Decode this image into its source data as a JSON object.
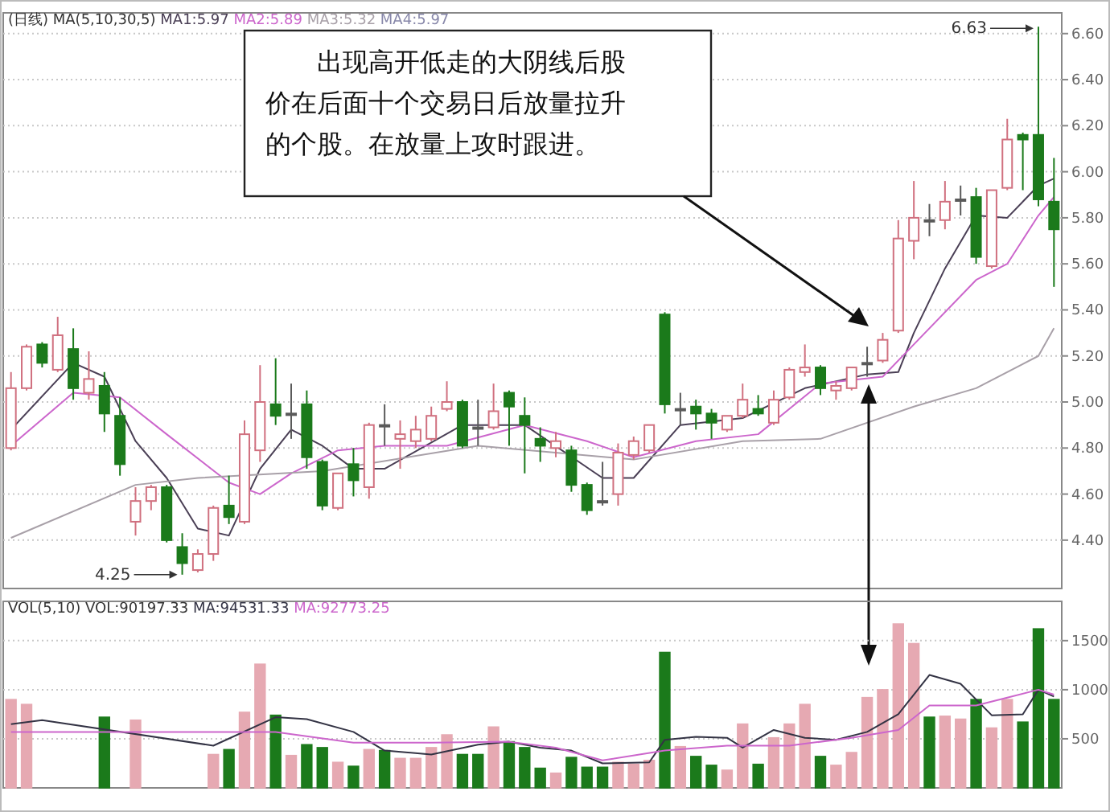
{
  "chart_data": [
    {
      "type": "candlestick",
      "legend_title": "(日线) MA(5,10,30,5)",
      "legend": "top left",
      "grid": "y",
      "categories": [
        null,
        null,
        null,
        null,
        null,
        null,
        null,
        null,
        null,
        null,
        null,
        null,
        null,
        null,
        null,
        null,
        null,
        null,
        null,
        null,
        null,
        null,
        null,
        null,
        null,
        null,
        null,
        null,
        null,
        null,
        null,
        null,
        null,
        null,
        null,
        null,
        null,
        null,
        null,
        null,
        null,
        null,
        null,
        null,
        null,
        null,
        null,
        null,
        null,
        null,
        null,
        null,
        null,
        null,
        null,
        null,
        null,
        null,
        null,
        null,
        null,
        null,
        null,
        null,
        null,
        null,
        null,
        null
      ],
      "ohlc": [
        [
          4.8,
          5.13,
          4.79,
          5.06
        ],
        [
          5.06,
          5.25,
          5.05,
          5.24
        ],
        [
          5.25,
          5.26,
          5.15,
          5.17
        ],
        [
          5.14,
          5.37,
          5.13,
          5.29
        ],
        [
          5.23,
          5.32,
          5.01,
          5.06
        ],
        [
          5.04,
          5.22,
          5.01,
          5.1
        ],
        [
          5.07,
          5.13,
          4.87,
          4.95
        ],
        [
          4.94,
          5.02,
          4.68,
          4.73
        ],
        [
          4.48,
          4.63,
          4.42,
          4.57
        ],
        [
          4.57,
          4.64,
          4.53,
          4.63
        ],
        [
          4.63,
          4.64,
          4.39,
          4.4
        ],
        [
          4.37,
          4.43,
          4.25,
          4.3
        ],
        [
          4.27,
          4.36,
          4.26,
          4.34
        ],
        [
          4.34,
          4.55,
          4.31,
          4.54
        ],
        [
          4.55,
          4.68,
          4.47,
          4.5
        ],
        [
          4.48,
          4.92,
          4.47,
          4.86
        ],
        [
          4.79,
          5.16,
          4.74,
          5.0
        ],
        [
          4.99,
          5.19,
          4.9,
          4.94
        ],
        [
          4.95,
          5.08,
          4.84,
          4.95
        ],
        [
          4.99,
          5.05,
          4.71,
          4.76
        ],
        [
          4.74,
          4.75,
          4.53,
          4.55
        ],
        [
          4.54,
          4.69,
          4.53,
          4.69
        ],
        [
          4.73,
          4.8,
          4.59,
          4.66
        ],
        [
          4.63,
          4.91,
          4.58,
          4.9
        ],
        [
          4.9,
          4.99,
          4.81,
          4.9
        ],
        [
          4.84,
          4.92,
          4.71,
          4.86
        ],
        [
          4.83,
          4.94,
          4.8,
          4.88
        ],
        [
          4.84,
          4.98,
          4.83,
          4.94
        ],
        [
          4.97,
          5.09,
          4.96,
          5.0
        ],
        [
          5.0,
          5.01,
          4.8,
          4.81
        ],
        [
          4.89,
          5.01,
          4.81,
          4.89
        ],
        [
          4.89,
          5.08,
          4.88,
          4.96
        ],
        [
          5.04,
          5.05,
          4.81,
          4.98
        ],
        [
          4.94,
          5.02,
          4.69,
          4.9
        ],
        [
          4.84,
          4.89,
          4.74,
          4.81
        ],
        [
          4.8,
          4.87,
          4.76,
          4.83
        ],
        [
          4.79,
          4.81,
          4.61,
          4.64
        ],
        [
          4.64,
          4.65,
          4.51,
          4.53
        ],
        [
          4.57,
          4.74,
          4.55,
          4.57
        ],
        [
          4.6,
          4.82,
          4.55,
          4.78
        ],
        [
          4.77,
          4.85,
          4.75,
          4.83
        ],
        [
          4.79,
          4.9,
          4.78,
          4.9
        ],
        [
          5.38,
          5.39,
          4.95,
          4.99
        ],
        [
          4.97,
          5.04,
          4.9,
          4.97
        ],
        [
          4.98,
          5.01,
          4.88,
          4.95
        ],
        [
          4.95,
          4.97,
          4.84,
          4.91
        ],
        [
          4.88,
          4.94,
          4.87,
          4.94
        ],
        [
          4.94,
          5.08,
          4.93,
          5.01
        ],
        [
          4.97,
          5.03,
          4.94,
          4.95
        ],
        [
          4.91,
          5.05,
          4.9,
          5.01
        ],
        [
          5.02,
          5.15,
          5.01,
          5.14
        ],
        [
          5.13,
          5.25,
          5.11,
          5.15
        ],
        [
          5.15,
          5.16,
          5.03,
          5.06
        ],
        [
          5.05,
          5.09,
          5.01,
          5.07
        ],
        [
          5.06,
          5.15,
          5.05,
          5.15
        ],
        [
          5.17,
          5.24,
          5.11,
          5.17
        ],
        [
          5.18,
          5.3,
          5.17,
          5.27
        ],
        [
          5.31,
          5.79,
          5.3,
          5.71
        ],
        [
          5.7,
          5.96,
          5.62,
          5.8
        ],
        [
          5.79,
          5.86,
          5.72,
          5.79
        ],
        [
          5.79,
          5.96,
          5.75,
          5.87
        ],
        [
          5.88,
          5.94,
          5.81,
          5.88
        ],
        [
          5.89,
          5.93,
          5.6,
          5.63
        ],
        [
          5.59,
          5.92,
          5.58,
          5.92
        ],
        [
          5.93,
          6.23,
          5.92,
          6.14
        ],
        [
          6.16,
          6.17,
          5.92,
          6.14
        ],
        [
          6.16,
          6.63,
          5.85,
          5.88
        ],
        [
          5.87,
          6.06,
          5.5,
          5.75
        ]
      ],
      "colors": [
        "#d0707f",
        "#d0707f",
        "#1b7a1b",
        "#d0707f",
        "#1b7a1b",
        "#d0707f",
        "#1b7a1b",
        "#1b7a1b",
        "#d0707f",
        "#d0707f",
        "#1b7a1b",
        "#1b7a1b",
        "#d0707f",
        "#d0707f",
        "#1b7a1b",
        "#d0707f",
        "#d0707f",
        "#1b7a1b",
        "#5a5a5a",
        "#1b7a1b",
        "#1b7a1b",
        "#d0707f",
        "#1b7a1b",
        "#d0707f",
        "#5a5a5a",
        "#d0707f",
        "#d0707f",
        "#d0707f",
        "#d0707f",
        "#1b7a1b",
        "#5a5a5a",
        "#d0707f",
        "#1b7a1b",
        "#1b7a1b",
        "#1b7a1b",
        "#d0707f",
        "#1b7a1b",
        "#1b7a1b",
        "#5a5a5a",
        "#d0707f",
        "#d0707f",
        "#d0707f",
        "#1b7a1b",
        "#5a5a5a",
        "#1b7a1b",
        "#1b7a1b",
        "#d0707f",
        "#d0707f",
        "#1b7a1b",
        "#d0707f",
        "#d0707f",
        "#d0707f",
        "#1b7a1b",
        "#d0707f",
        "#d0707f",
        "#5a5a5a",
        "#d0707f",
        "#d0707f",
        "#d0707f",
        "#5a5a5a",
        "#d0707f",
        "#5a5a5a",
        "#1b7a1b",
        "#d0707f",
        "#d0707f",
        "#1b7a1b",
        "#1b7a1b",
        "#1b7a1b"
      ],
      "series": [
        {
          "type": "line",
          "name": "MA1:5.97",
          "color": "#4a3f55",
          "values": [
            4.88,
            null,
            null,
            null,
            5.17,
            null,
            5.11,
            null,
            4.83,
            null,
            4.67,
            null,
            4.45,
            null,
            4.42,
            null,
            4.71,
            null,
            4.88,
            null,
            4.81,
            null,
            4.71,
            null,
            4.71,
            null,
            null,
            null,
            null,
            4.9,
            null,
            null,
            null,
            4.9,
            null,
            null,
            null,
            null,
            4.67,
            null,
            4.67,
            null,
            null,
            4.9,
            null,
            null,
            null,
            4.93,
            null,
            null,
            null,
            5.06,
            null,
            null,
            null,
            5.12,
            null,
            5.13,
            5.3,
            null,
            5.58,
            null,
            5.81,
            null,
            5.8,
            null,
            5.94,
            5.97
          ]
        },
        {
          "type": "line",
          "name": "MA2:5.89",
          "color": "#cc66cc",
          "values": [
            4.81,
            null,
            null,
            null,
            5.04,
            null,
            null,
            5.02,
            null,
            null,
            4.86,
            null,
            null,
            null,
            4.65,
            null,
            4.6,
            null,
            4.69,
            null,
            null,
            4.79,
            null,
            null,
            4.81,
            null,
            null,
            null,
            4.81,
            null,
            null,
            null,
            null,
            4.9,
            null,
            null,
            null,
            4.83,
            null,
            null,
            4.76,
            null,
            null,
            null,
            4.83,
            null,
            null,
            null,
            4.86,
            null,
            null,
            null,
            5.08,
            null,
            null,
            null,
            5.11,
            null,
            5.25,
            null,
            null,
            null,
            5.53,
            null,
            5.6,
            null,
            5.81,
            5.89
          ]
        },
        {
          "type": "line",
          "name": "MA3:5.32",
          "color": "#a8a0a8",
          "values": [
            4.41,
            null,
            null,
            null,
            null,
            null,
            null,
            null,
            4.64,
            null,
            null,
            null,
            4.67,
            null,
            null,
            null,
            null,
            null,
            null,
            null,
            4.7,
            null,
            null,
            null,
            null,
            null,
            null,
            null,
            null,
            null,
            4.81,
            null,
            null,
            null,
            null,
            null,
            null,
            null,
            null,
            null,
            4.75,
            null,
            null,
            null,
            null,
            null,
            null,
            4.83,
            null,
            null,
            null,
            null,
            4.84,
            null,
            null,
            null,
            null,
            null,
            4.98,
            null,
            null,
            null,
            5.06,
            null,
            null,
            null,
            5.2,
            5.32
          ]
        }
      ],
      "ylim": [
        4.19,
        6.69
      ],
      "yticks": [
        {
          "value": 4.4,
          "label": "4.40"
        },
        {
          "value": 4.6,
          "label": "4.60"
        },
        {
          "value": 4.8,
          "label": "4.80"
        },
        {
          "value": 5.0,
          "label": "5.00"
        },
        {
          "value": 5.2,
          "label": "5.20"
        },
        {
          "value": 5.4,
          "label": "5.40"
        },
        {
          "value": 5.6,
          "label": "5.60"
        },
        {
          "value": 5.8,
          "label": "5.80"
        },
        {
          "value": 6.0,
          "label": "6.00"
        },
        {
          "value": 6.2,
          "label": "6.20"
        },
        {
          "value": 6.4,
          "label": "6.40"
        },
        {
          "value": 6.6,
          "label": "6.60"
        }
      ],
      "annotations": [
        "MA4:5.97",
        "出现高开低走的大阴线后股价在后面十个交易日后放量拉升的个股。在放量上攻时跟进。",
        "6.63",
        "4.25"
      ]
    },
    {
      "type": "bar",
      "legend_title": "VOL(5,10)",
      "legend": "top left",
      "grid": "y",
      "categories": [
        null,
        null,
        null,
        null,
        null,
        null,
        null,
        null,
        null,
        null,
        null,
        null,
        null,
        null,
        null,
        null,
        null,
        null,
        null,
        null,
        null,
        null,
        null,
        null,
        null,
        null,
        null,
        null,
        null,
        null,
        null,
        null,
        null,
        null,
        null,
        null,
        null,
        null,
        null,
        null,
        null,
        null,
        null,
        null,
        null,
        null,
        null,
        null,
        null,
        null,
        null,
        null,
        null,
        null,
        null,
        null,
        null,
        null,
        null,
        null,
        null,
        null,
        null,
        null,
        null,
        null,
        null,
        null
      ],
      "values": [
        900,
        850,
        null,
        null,
        null,
        null,
        720,
        null,
        690,
        null,
        null,
        null,
        null,
        340,
        390,
        770,
        1260,
        740,
        330,
        440,
        410,
        260,
        220,
        390,
        380,
        300,
        300,
        410,
        540,
        340,
        340,
        620,
        470,
        410,
        200,
        150,
        310,
        210,
        210,
        260,
        240,
        280,
        1380,
        420,
        320,
        230,
        180,
        650,
        240,
        510,
        650,
        850,
        320,
        230,
        360,
        920,
        1000,
        1670,
        1470,
        720,
        730,
        700,
        900,
        610,
        900,
        670,
        1620,
        900
      ],
      "colors": [
        "#e6a9b2",
        "#e6a9b2",
        null,
        null,
        null,
        null,
        "#1b7a1b",
        null,
        "#e6a9b2",
        null,
        null,
        null,
        null,
        "#e6a9b2",
        "#1b7a1b",
        "#e6a9b2",
        "#e6a9b2",
        "#1b7a1b",
        "#e6a9b2",
        "#1b7a1b",
        "#1b7a1b",
        "#e6a9b2",
        "#1b7a1b",
        "#e6a9b2",
        "#1b7a1b",
        "#e6a9b2",
        "#e6a9b2",
        "#e6a9b2",
        "#e6a9b2",
        "#1b7a1b",
        "#1b7a1b",
        "#e6a9b2",
        "#1b7a1b",
        "#1b7a1b",
        "#1b7a1b",
        "#e6a9b2",
        "#1b7a1b",
        "#1b7a1b",
        "#1b7a1b",
        "#e6a9b2",
        "#e6a9b2",
        "#e6a9b2",
        "#1b7a1b",
        "#e6a9b2",
        "#1b7a1b",
        "#1b7a1b",
        "#e6a9b2",
        "#e6a9b2",
        "#1b7a1b",
        "#e6a9b2",
        "#e6a9b2",
        "#e6a9b2",
        "#1b7a1b",
        "#e6a9b2",
        "#e6a9b2",
        "#e6a9b2",
        "#e6a9b2",
        "#e6a9b2",
        "#e6a9b2",
        "#1b7a1b",
        "#e6a9b2",
        "#e6a9b2",
        "#1b7a1b",
        "#e6a9b2",
        "#e6a9b2",
        "#1b7a1b",
        "#1b7a1b",
        "#1b7a1b"
      ],
      "series": [
        {
          "type": "line",
          "name": "MA:94531.33",
          "color": "#333344",
          "values": [
            650,
            null,
            690,
            null,
            null,
            null,
            null,
            null,
            null,
            null,
            null,
            null,
            null,
            430,
            null,
            null,
            null,
            720,
            null,
            700,
            null,
            null,
            570,
            null,
            380,
            null,
            null,
            340,
            null,
            null,
            440,
            null,
            470,
            null,
            410,
            null,
            380,
            null,
            250,
            null,
            null,
            260,
            490,
            null,
            520,
            null,
            510,
            410,
            null,
            590,
            null,
            510,
            null,
            490,
            null,
            570,
            null,
            750,
            null,
            1150,
            null,
            1060,
            null,
            740,
            null,
            750,
            1000,
            930
          ]
        },
        {
          "type": "line",
          "name": "MA:92773.25",
          "color": "#cc66cc",
          "values": [
            570,
            null,
            null,
            null,
            null,
            null,
            null,
            null,
            null,
            null,
            null,
            null,
            null,
            null,
            null,
            null,
            null,
            570,
            null,
            null,
            null,
            null,
            460,
            null,
            null,
            null,
            null,
            460,
            null,
            null,
            null,
            null,
            470,
            null,
            null,
            410,
            null,
            null,
            280,
            null,
            null,
            null,
            380,
            null,
            null,
            null,
            430,
            null,
            null,
            null,
            430,
            null,
            null,
            null,
            510,
            null,
            null,
            590,
            null,
            840,
            null,
            null,
            840,
            null,
            920,
            null,
            1000,
            950
          ]
        }
      ],
      "ylim": [
        0,
        1900
      ],
      "yticks": [
        500,
        1000,
        1500
      ],
      "annotations": [
        "VOL:90197.33"
      ]
    }
  ]
}
